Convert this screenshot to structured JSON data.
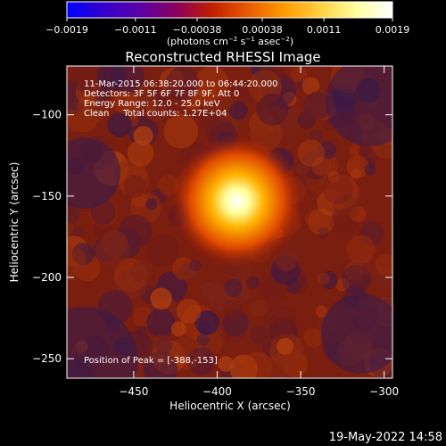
{
  "chart_data": {
    "type": "heatmap",
    "title": "Reconstructed RHESSI Image",
    "xlabel": "Heliocentric X (arcsec)",
    "ylabel": "Heliocentric Y (arcsec)",
    "xlim": [
      -490,
      -295
    ],
    "ylim": [
      -262,
      -70
    ],
    "x_ticks": [
      -450,
      -400,
      -350,
      -300
    ],
    "x_tick_labels": [
      "−450",
      "−400",
      "−350",
      "−300"
    ],
    "y_ticks": [
      -100,
      -150,
      -200,
      -250
    ],
    "y_tick_labels": [
      "−100",
      "−150",
      "−200",
      "−250"
    ],
    "colorbar": {
      "range": [
        -0.0019,
        0.0019
      ],
      "ticks": [
        -0.0019,
        -0.0011,
        -0.00038,
        0.00038,
        0.0011,
        0.0019
      ],
      "tick_labels": [
        "−0.0019",
        "−0.0011",
        "−0.00038",
        "0.00038",
        "0.0011",
        "0.0019"
      ],
      "unit_label": "(photons cm",
      "unit_exp1": "−2",
      "unit_mid": " s",
      "unit_exp2": "−1",
      "unit_mid2": " asec",
      "unit_exp3": "−2",
      "unit_end": ")",
      "colormap": [
        "#0000ff",
        "#3300cc",
        "#5a00a8",
        "#8b0060",
        "#c01e00",
        "#e85a00",
        "#ff9a00",
        "#ffd040",
        "#ffff9f",
        "#ffffff"
      ]
    },
    "source": {
      "x": -388,
      "y": -153,
      "peak_value": 0.0019,
      "sigma_arcsec": 7
    },
    "background_level": 0.0002,
    "info_lines": [
      "11-Mar-2015 06:38:20.000 to 06:44:20.000",
      "Detectors: 3F 5F 6F 7F 8F 9F, Att 0",
      "Energy Range: 12.0 - 25.0 keV",
      "Clean     Total counts: 1.27E+04"
    ],
    "peak_label": "Position of Peak = [-388,-153]"
  },
  "footer": {
    "timestamp": "19-May-2022 14:58"
  }
}
